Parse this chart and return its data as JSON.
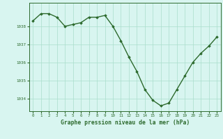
{
  "x": [
    0,
    1,
    2,
    3,
    4,
    5,
    6,
    7,
    8,
    9,
    10,
    11,
    12,
    13,
    14,
    15,
    16,
    17,
    18,
    19,
    20,
    21,
    22,
    23
  ],
  "y": [
    1038.3,
    1038.7,
    1038.7,
    1038.5,
    1038.0,
    1038.1,
    1038.2,
    1038.5,
    1038.5,
    1038.6,
    1038.0,
    1037.2,
    1036.3,
    1035.5,
    1034.5,
    1033.9,
    1033.6,
    1033.75,
    1034.5,
    1035.25,
    1036.0,
    1036.5,
    1036.9,
    1037.4
  ],
  "line_color": "#2d6a2d",
  "marker": "D",
  "marker_size": 1.8,
  "bg_color": "#d8f5f0",
  "grid_color": "#aaddcc",
  "xlabel": "Graphe pression niveau de la mer (hPa)",
  "xlabel_color": "#2d6a2d",
  "tick_color": "#2d6a2d",
  "ylim": [
    1033.3,
    1039.3
  ],
  "xlim": [
    -0.5,
    23.5
  ],
  "yticks": [
    1034,
    1035,
    1036,
    1037,
    1038
  ],
  "xtick_labels": [
    "0",
    "1",
    "2",
    "3",
    "4",
    "5",
    "6",
    "7",
    "8",
    "9",
    "10",
    "11",
    "12",
    "13",
    "14",
    "15",
    "16",
    "17",
    "18",
    "19",
    "20",
    "21",
    "22",
    "23"
  ],
  "linewidth": 1.0,
  "font_size_x": 4.2,
  "font_size_y": 5.0,
  "font_size_label": 5.8
}
